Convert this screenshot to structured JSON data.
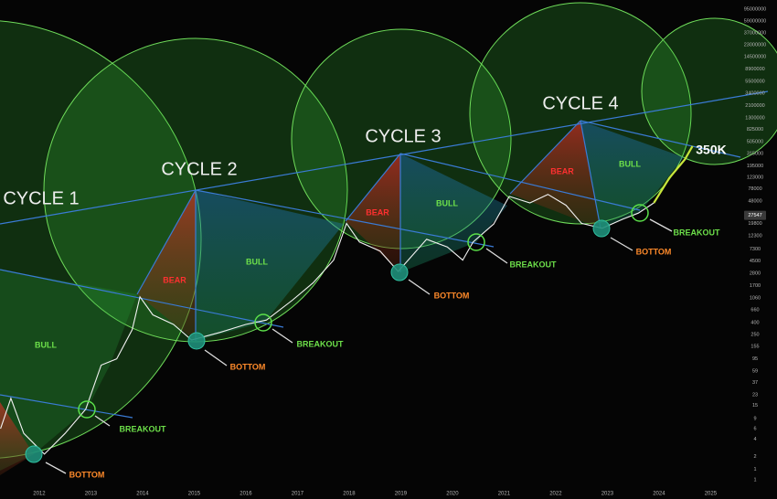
{
  "chart_data": {
    "type": "line",
    "log_scale": true,
    "grid": false,
    "x": [
      2011.25,
      2011.45,
      2011.7,
      2011.95,
      2012.1,
      2012.5,
      2012.9,
      2013.2,
      2013.5,
      2013.8,
      2013.95,
      2014.2,
      2014.6,
      2014.95,
      2015.5,
      2016.0,
      2016.4,
      2016.9,
      2017.3,
      2017.7,
      2017.95,
      2018.2,
      2018.6,
      2018.95,
      2019.5,
      2019.9,
      2020.2,
      2020.4,
      2020.8,
      2021.1,
      2021.5,
      2021.85,
      2022.2,
      2022.5,
      2022.9,
      2023.3,
      2023.6,
      2023.9,
      2024.2,
      2024.5,
      2024.65
    ],
    "series": [
      {
        "color": "#f2f2f2",
        "values": [
          6,
          20,
          5,
          3,
          2.2,
          5,
          13,
          74,
          95,
          300,
          1100,
          540,
          370,
          200,
          270,
          370,
          440,
          960,
          1900,
          4700,
          20000,
          9600,
          6700,
          3000,
          10700,
          7900,
          4700,
          9600,
          19500,
          58000,
          45000,
          63000,
          41000,
          20000,
          16500,
          23700,
          30000,
          45000,
          null,
          null,
          null
        ]
      },
      {
        "color": "#c8e63c",
        "values": [
          null,
          null,
          null,
          null,
          null,
          null,
          null,
          null,
          null,
          null,
          null,
          null,
          null,
          null,
          null,
          null,
          null,
          null,
          null,
          null,
          null,
          null,
          null,
          null,
          null,
          null,
          null,
          null,
          null,
          null,
          null,
          null,
          null,
          null,
          null,
          null,
          null,
          45000,
          120000,
          250000,
          425000
        ]
      }
    ],
    "xlim": [
      2011.24,
      2025.4
    ],
    "ylim": [
      0.62,
      136000000
    ],
    "xticks": [
      2012,
      2013,
      2014,
      2015,
      2016,
      2017,
      2018,
      2019,
      2020,
      2021,
      2022,
      2023,
      2024,
      2025
    ],
    "yticks": [
      95000000,
      59000000,
      37000000,
      23000000,
      14500000,
      8900000,
      5500000,
      3400000,
      2100000,
      1300000,
      825000,
      505000,
      315000,
      195000,
      123000,
      78000,
      48000,
      19800,
      12300,
      7300,
      4500,
      2800,
      1700,
      1060,
      660,
      400,
      250,
      155,
      95,
      59,
      37,
      23,
      15,
      9,
      6,
      4,
      2,
      {
        "value": 1.2,
        "label": "1"
      },
      {
        "value": 0.8,
        "label": "1"
      }
    ],
    "last_price": 27547,
    "annotations": [
      "CYCLE 1",
      "CYCLE 2",
      "CYCLE 3",
      "CYCLE 4",
      "BULL",
      "BEAR",
      "BULL",
      "BEAR",
      "BULL",
      "BEAR",
      "BULL",
      "BOTTOM",
      "BREAKOUT",
      "BOTTOM",
      "BREAKOUT",
      "BOTTOM",
      "BREAKOUT",
      "BOTTOM",
      "BREAKOUT",
      "350K"
    ]
  }
}
